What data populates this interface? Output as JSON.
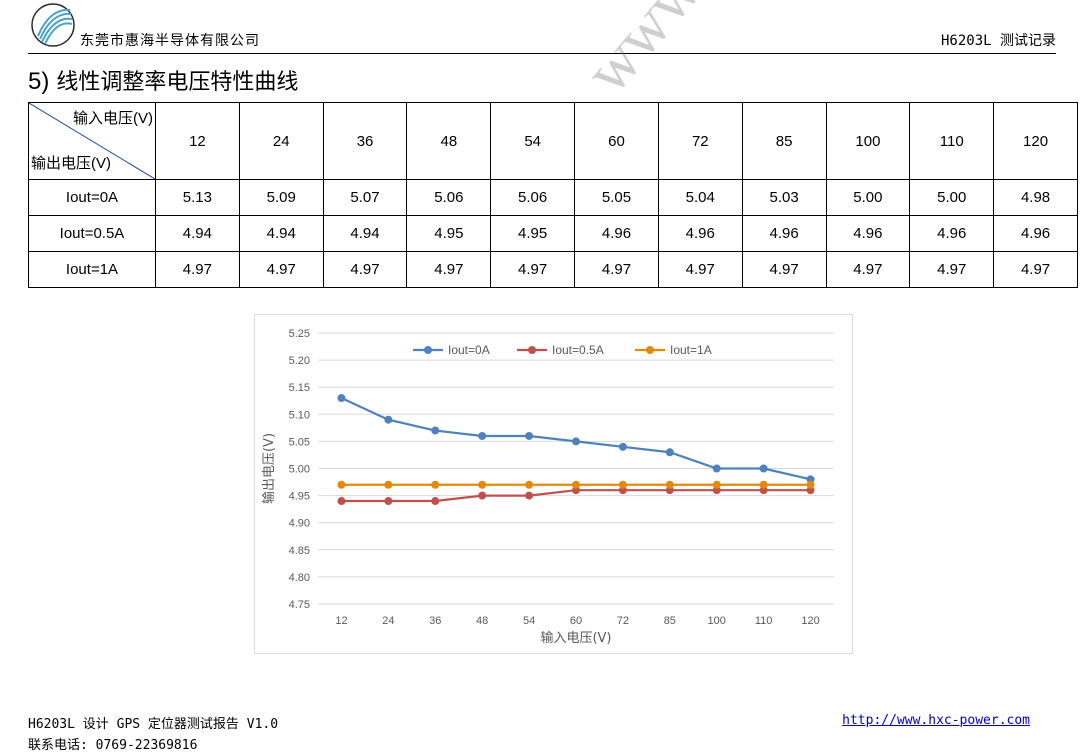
{
  "header": {
    "company": "东莞市惠海半导体有限公司",
    "doc_id": "H6203L 测试记录"
  },
  "section": {
    "number": "5)",
    "title": "线性调整率电压特性曲线"
  },
  "table": {
    "corner_top": "输入电压(V)",
    "corner_bottom": "输出电压(V)",
    "columns": [
      "12",
      "24",
      "36",
      "48",
      "54",
      "60",
      "72",
      "85",
      "100",
      "110",
      "120"
    ],
    "rows": [
      {
        "label": "Iout=0A",
        "values": [
          "5.13",
          "5.09",
          "5.07",
          "5.06",
          "5.06",
          "5.05",
          "5.04",
          "5.03",
          "5.00",
          "5.00",
          "4.98"
        ]
      },
      {
        "label": "Iout=0.5A",
        "values": [
          "4.94",
          "4.94",
          "4.94",
          "4.95",
          "4.95",
          "4.96",
          "4.96",
          "4.96",
          "4.96",
          "4.96",
          "4.96"
        ]
      },
      {
        "label": "Iout=1A",
        "values": [
          "4.97",
          "4.97",
          "4.97",
          "4.97",
          "4.97",
          "4.97",
          "4.97",
          "4.97",
          "4.97",
          "4.97",
          "4.97"
        ]
      }
    ]
  },
  "watermark": "www.hxc-power.com",
  "chart_data": {
    "type": "line",
    "categories": [
      "12",
      "24",
      "36",
      "48",
      "54",
      "60",
      "72",
      "85",
      "100",
      "110",
      "120"
    ],
    "series": [
      {
        "name": "Iout=0A",
        "color": "#4f81bd",
        "values": [
          5.13,
          5.09,
          5.07,
          5.06,
          5.06,
          5.05,
          5.04,
          5.03,
          5.0,
          5.0,
          4.98
        ]
      },
      {
        "name": "Iout=0.5A",
        "color": "#c0504d",
        "values": [
          4.94,
          4.94,
          4.94,
          4.95,
          4.95,
          4.96,
          4.96,
          4.96,
          4.96,
          4.96,
          4.96
        ]
      },
      {
        "name": "Iout=1A",
        "color": "#e38a0e",
        "values": [
          4.97,
          4.97,
          4.97,
          4.97,
          4.97,
          4.97,
          4.97,
          4.97,
          4.97,
          4.97,
          4.97
        ]
      }
    ],
    "xlabel": "输入电压(V)",
    "ylabel": "输出电压(V)",
    "ylim": [
      4.75,
      5.25
    ],
    "yticks": [
      "4.75",
      "4.80",
      "4.85",
      "4.90",
      "4.95",
      "5.00",
      "5.05",
      "5.10",
      "5.15",
      "5.20",
      "5.25"
    ],
    "grid": true,
    "legend": "top-center"
  },
  "footer": {
    "doc_name": "H6203L 设计 GPS 定位器测试报告 V1.0",
    "phone": "联系电话: 0769-22369816",
    "url": "http://www.hxc-power.com"
  }
}
